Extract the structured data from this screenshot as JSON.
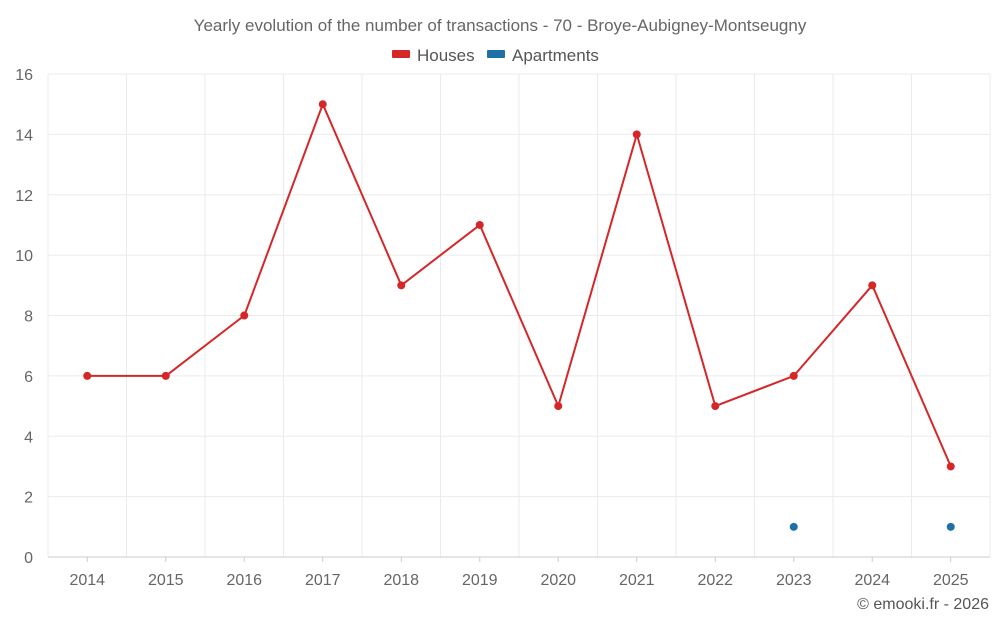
{
  "chart_data": {
    "type": "line",
    "title": "Yearly evolution of the number of transactions - 70 - Broye-Aubigney-Montseugny",
    "xlabel": "",
    "ylabel": "",
    "categories": [
      "2014",
      "2015",
      "2016",
      "2017",
      "2018",
      "2019",
      "2020",
      "2021",
      "2022",
      "2023",
      "2024",
      "2025"
    ],
    "ylim": [
      0,
      16
    ],
    "yticks": [
      0,
      2,
      4,
      6,
      8,
      10,
      12,
      14,
      16
    ],
    "yticks_labels": [
      "0",
      "2",
      "4",
      "6",
      "8",
      "10",
      "12",
      "14",
      "16"
    ],
    "grid": true,
    "legend_position": "top-center",
    "series": [
      {
        "name": "Houses",
        "color": "#d62728",
        "values": [
          6,
          6,
          8,
          15,
          9,
          11,
          5,
          14,
          5,
          6,
          9,
          3
        ]
      },
      {
        "name": "Apartments",
        "color": "#1f6fa8",
        "values": [
          null,
          null,
          null,
          null,
          null,
          null,
          null,
          null,
          null,
          1,
          null,
          1
        ]
      }
    ]
  },
  "credit": "© emooki.fr - 2026"
}
